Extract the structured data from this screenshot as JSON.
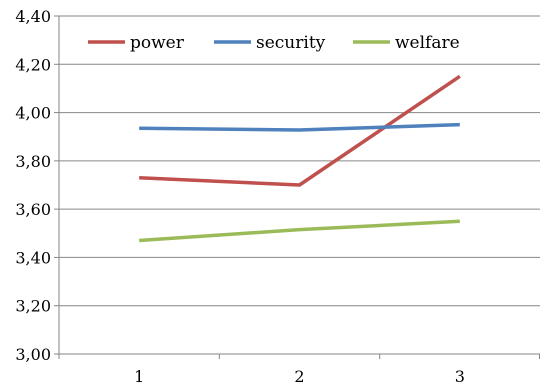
{
  "chart_data": {
    "type": "line",
    "title": "",
    "xlabel": "",
    "ylabel": "",
    "categories": [
      "1",
      "2",
      "3"
    ],
    "ylim": [
      3.0,
      4.4
    ],
    "ytick_step": 0.2,
    "yticks": [
      "3,00",
      "3,20",
      "3,40",
      "3,60",
      "3,80",
      "4,00",
      "4,20",
      "4,40"
    ],
    "grid": true,
    "legend_position": "top",
    "series": [
      {
        "name": "power",
        "color": "#c0504d",
        "values": [
          3.73,
          3.7,
          4.15
        ]
      },
      {
        "name": "security",
        "color": "#4f81bd",
        "values": [
          3.935,
          3.928,
          3.95
        ]
      },
      {
        "name": "welfare",
        "color": "#9bbb59",
        "values": [
          3.47,
          3.515,
          3.55
        ]
      }
    ]
  }
}
